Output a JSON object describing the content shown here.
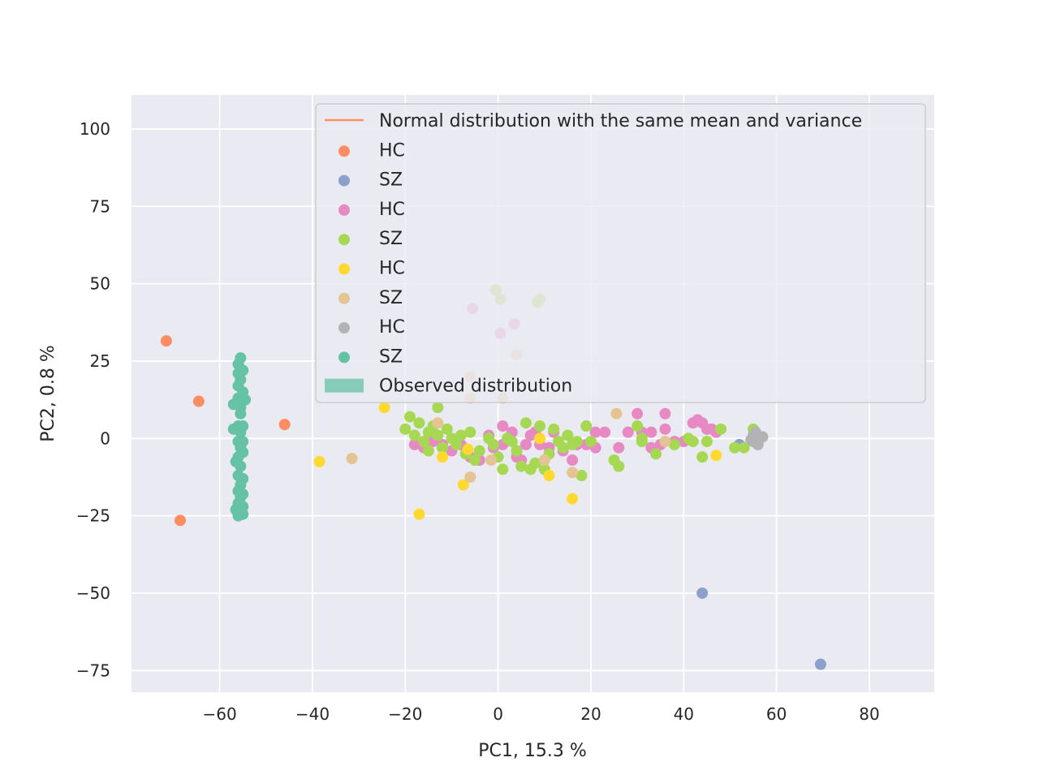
{
  "chart_data": {
    "type": "scatter",
    "title": "",
    "xlabel": "PC1, 15.3 %",
    "ylabel": "PC2, 0.8 %",
    "xlim": [
      -79,
      94
    ],
    "ylim": [
      -82,
      111
    ],
    "xticks": [
      -60,
      -40,
      -20,
      0,
      20,
      40,
      60,
      80
    ],
    "yticks": [
      -75,
      -50,
      -25,
      0,
      25,
      50,
      75,
      100
    ],
    "xtick_labels": [
      "−60",
      "−40",
      "−20",
      "0",
      "20",
      "40",
      "60",
      "80"
    ],
    "ytick_labels": [
      "−75",
      "−50",
      "−25",
      "0",
      "25",
      "50",
      "75",
      "100"
    ],
    "grid": true,
    "legend_placement": "top-right",
    "legend": [
      {
        "label": "Normal distribution with the same mean and variance",
        "kind": "line",
        "color": "#fc8d62"
      },
      {
        "label": "HC",
        "kind": "marker",
        "color": "#fc8d62"
      },
      {
        "label": "SZ",
        "kind": "marker",
        "color": "#8da0cb"
      },
      {
        "label": "HC",
        "kind": "marker",
        "color": "#e78ac3"
      },
      {
        "label": "SZ",
        "kind": "marker",
        "color": "#a6d854"
      },
      {
        "label": "HC",
        "kind": "marker",
        "color": "#ffd92f"
      },
      {
        "label": "SZ",
        "kind": "marker",
        "color": "#e5c494"
      },
      {
        "label": "HC",
        "kind": "marker",
        "color": "#b3b3b3"
      },
      {
        "label": "SZ",
        "kind": "marker",
        "color": "#66c2a5"
      },
      {
        "label": "Observed distribution",
        "kind": "patch",
        "color": "#66c2a5"
      }
    ],
    "series": [
      {
        "color": "#66c2a5",
        "points": [
          [
            -55.5,
            26
          ],
          [
            -56,
            24
          ],
          [
            -55,
            22
          ],
          [
            -56,
            21
          ],
          [
            -55.5,
            19
          ],
          [
            -56,
            17
          ],
          [
            -55,
            15
          ],
          [
            -56,
            13
          ],
          [
            -54.5,
            12.5
          ],
          [
            -57,
            11
          ],
          [
            -55.5,
            10
          ],
          [
            -55.5,
            8
          ],
          [
            -56,
            4
          ],
          [
            -55,
            4
          ],
          [
            -57,
            3
          ],
          [
            -55.5,
            2
          ],
          [
            -56,
            -1
          ],
          [
            -55,
            -1
          ],
          [
            -55.5,
            -3
          ],
          [
            -55,
            -4.5
          ],
          [
            -56,
            -6
          ],
          [
            -56.5,
            -7.5
          ],
          [
            -55.5,
            -9
          ],
          [
            -56,
            -12
          ],
          [
            -55,
            -13
          ],
          [
            -55.5,
            -15
          ],
          [
            -56,
            -17
          ],
          [
            -55,
            -18
          ],
          [
            -55.5,
            -19
          ],
          [
            -56,
            -21
          ],
          [
            -55,
            -22
          ],
          [
            -56.5,
            -23
          ],
          [
            -55.5,
            -24
          ],
          [
            -56,
            -25
          ],
          [
            -55,
            -24.5
          ]
        ]
      },
      {
        "color": "#fc8d62",
        "points": [
          [
            -71.5,
            31.5
          ],
          [
            -64.5,
            12
          ],
          [
            -46,
            4.5
          ],
          [
            -68.5,
            -26.5
          ]
        ]
      },
      {
        "color": "#8da0cb",
        "points": [
          [
            44,
            -50
          ],
          [
            69.5,
            -73
          ],
          [
            52,
            -2
          ]
        ]
      },
      {
        "color": "#e78ac3",
        "points": [
          [
            -5.5,
            42
          ],
          [
            0.5,
            34
          ],
          [
            3.5,
            37
          ],
          [
            -18,
            -2
          ],
          [
            -16,
            -3
          ],
          [
            -14,
            -1
          ],
          [
            -12,
            -2
          ],
          [
            -10,
            -4
          ],
          [
            -8,
            -2
          ],
          [
            -6,
            -6
          ],
          [
            -4,
            -7
          ],
          [
            -2,
            1
          ],
          [
            -1,
            -3
          ],
          [
            1,
            4
          ],
          [
            1,
            -2
          ],
          [
            3,
            2
          ],
          [
            4,
            -4
          ],
          [
            4,
            -6
          ],
          [
            5,
            -7
          ],
          [
            6,
            -2
          ],
          [
            7,
            1
          ],
          [
            8,
            2
          ],
          [
            9,
            -2
          ],
          [
            11,
            -3
          ],
          [
            12,
            2
          ],
          [
            14,
            -4
          ],
          [
            16,
            -7
          ],
          [
            17,
            -2
          ],
          [
            19,
            -2
          ],
          [
            21,
            2
          ],
          [
            21,
            -3
          ],
          [
            23,
            2
          ],
          [
            26,
            -3
          ],
          [
            28,
            2
          ],
          [
            30,
            8
          ],
          [
            31,
            2
          ],
          [
            33,
            2
          ],
          [
            33,
            -3
          ],
          [
            35,
            -2
          ],
          [
            36,
            8
          ],
          [
            36,
            3
          ],
          [
            38,
            -1
          ],
          [
            40,
            -1
          ],
          [
            42,
            5
          ],
          [
            43,
            6
          ],
          [
            44,
            5
          ],
          [
            45,
            3
          ],
          [
            46,
            3
          ],
          [
            47,
            2
          ]
        ]
      },
      {
        "color": "#a6d854",
        "points": [
          [
            -0.5,
            48
          ],
          [
            0.5,
            45
          ],
          [
            8.5,
            44
          ],
          [
            9,
            45
          ],
          [
            -20,
            3
          ],
          [
            -19,
            7
          ],
          [
            -18,
            1
          ],
          [
            -17,
            5
          ],
          [
            -16,
            -1
          ],
          [
            -15,
            2
          ],
          [
            -15,
            -4
          ],
          [
            -14,
            4
          ],
          [
            -13,
            1
          ],
          [
            -12,
            -3
          ],
          [
            -11,
            3
          ],
          [
            -10,
            0
          ],
          [
            -9,
            -2
          ],
          [
            -8,
            1
          ],
          [
            -7,
            -5
          ],
          [
            -6,
            2
          ],
          [
            -5,
            -7
          ],
          [
            -4,
            -4
          ],
          [
            -2,
            0
          ],
          [
            -1,
            -2
          ],
          [
            0,
            -6
          ],
          [
            1,
            -10
          ],
          [
            2,
            0
          ],
          [
            3,
            -1
          ],
          [
            4,
            -4
          ],
          [
            5,
            -9
          ],
          [
            6,
            5
          ],
          [
            7,
            -10
          ],
          [
            8,
            -8
          ],
          [
            9,
            4
          ],
          [
            10,
            -10
          ],
          [
            11,
            -5
          ],
          [
            12,
            3
          ],
          [
            13,
            -1
          ],
          [
            14,
            -3
          ],
          [
            15,
            1
          ],
          [
            16,
            -2
          ],
          [
            17,
            -1
          ],
          [
            18,
            -12
          ],
          [
            19,
            4
          ],
          [
            20,
            -1
          ],
          [
            25,
            -7
          ],
          [
            26,
            -9
          ],
          [
            30,
            4
          ],
          [
            31,
            0
          ],
          [
            31,
            -1
          ],
          [
            34,
            -5
          ],
          [
            38,
            -2
          ],
          [
            41,
            0
          ],
          [
            42,
            -1
          ],
          [
            44,
            -6
          ],
          [
            45,
            -1
          ],
          [
            48,
            3
          ],
          [
            51,
            -3
          ],
          [
            53,
            -3
          ],
          [
            55,
            3
          ],
          [
            56,
            -1
          ],
          [
            -13,
            10
          ]
        ]
      },
      {
        "color": "#ffd92f",
        "points": [
          [
            -24.5,
            10
          ],
          [
            -38.5,
            -7.5
          ],
          [
            -17,
            -24.5
          ],
          [
            -12,
            -6
          ],
          [
            -7.5,
            -15
          ],
          [
            -6.5,
            -3.5
          ],
          [
            9,
            0
          ],
          [
            11,
            -12
          ],
          [
            16,
            -19.5
          ],
          [
            47,
            -5.5
          ]
        ]
      },
      {
        "color": "#e5c494",
        "points": [
          [
            -6,
            20
          ],
          [
            -6,
            13
          ],
          [
            1,
            13
          ],
          [
            4,
            27
          ],
          [
            -31.5,
            -6.5
          ],
          [
            -13,
            5
          ],
          [
            -6,
            -12.5
          ],
          [
            -1.5,
            -7
          ],
          [
            10,
            -7
          ],
          [
            16,
            -11
          ],
          [
            25.5,
            8
          ],
          [
            36,
            -1
          ]
        ]
      },
      {
        "color": "#b3b3b3",
        "points": [
          [
            55,
            1
          ],
          [
            55.5,
            2
          ],
          [
            56,
            0
          ],
          [
            55,
            -1
          ],
          [
            56,
            -2
          ],
          [
            55.5,
            -1
          ],
          [
            57,
            0.5
          ],
          [
            54.5,
            -0.5
          ]
        ]
      }
    ]
  }
}
